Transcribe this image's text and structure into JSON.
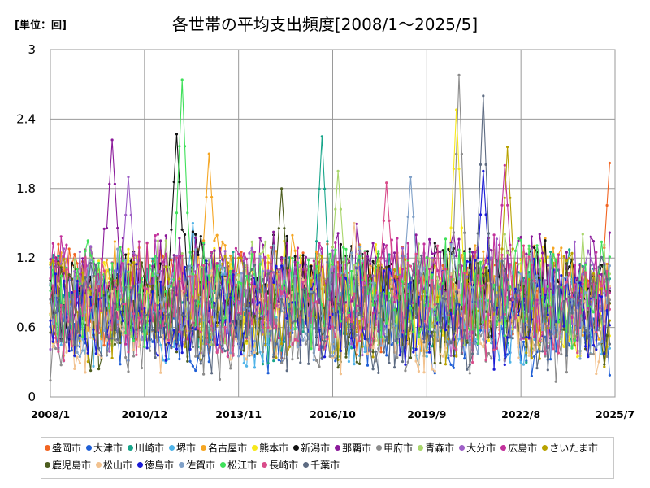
{
  "unit_label": "[単位：回]",
  "chart_data": {
    "type": "line",
    "title": "各世帯の平均支出頻度[2008/1～2025/5]",
    "xlabel": "",
    "ylabel": "",
    "ylim": [
      0,
      3
    ],
    "y_ticks": [
      "0",
      "0.6",
      "1.2",
      "1.8",
      "2.4",
      "3"
    ],
    "x_ticks": [
      "2008/1",
      "2010/12",
      "2013/11",
      "2016/10",
      "2019/9",
      "2022/8",
      "2025/7"
    ],
    "x_start": "2008-01",
    "x_end": "2025-07",
    "grid": true,
    "legend_position": "bottom",
    "series": [
      {
        "name": "盛岡市",
        "color": "#f26522",
        "base": 0.85,
        "amp": 0.45,
        "peak": 2.02,
        "peak_month": "2025-05"
      },
      {
        "name": "大津市",
        "color": "#1f5fd6",
        "base": 0.6,
        "amp": 0.35,
        "peak": 1.0,
        "peak_month": "2009-06"
      },
      {
        "name": "川崎市",
        "color": "#17a58a",
        "base": 0.8,
        "amp": 0.45,
        "peak": 2.25,
        "peak_month": "2016-06"
      },
      {
        "name": "堺市",
        "color": "#4fb3e8",
        "base": 0.7,
        "amp": 0.4,
        "peak": 1.5,
        "peak_month": "2012-06"
      },
      {
        "name": "名古屋市",
        "color": "#f5a623",
        "base": 0.9,
        "amp": 0.45,
        "peak": 2.1,
        "peak_month": "2012-12"
      },
      {
        "name": "熊本市",
        "color": "#f7e81b",
        "base": 0.85,
        "amp": 0.45,
        "peak": 2.48,
        "peak_month": "2020-08"
      },
      {
        "name": "新潟市",
        "color": "#111111",
        "base": 0.95,
        "amp": 0.4,
        "peak": 2.27,
        "peak_month": "2011-12"
      },
      {
        "name": "那覇市",
        "color": "#8b1a9a",
        "base": 1.0,
        "amp": 0.45,
        "peak": 2.22,
        "peak_month": "2009-12"
      },
      {
        "name": "甲府市",
        "color": "#8c8c8c",
        "base": 0.6,
        "amp": 0.4,
        "peak": 2.78,
        "peak_month": "2020-09"
      },
      {
        "name": "青森市",
        "color": "#a9d66b",
        "base": 0.9,
        "amp": 0.45,
        "peak": 1.95,
        "peak_month": "2016-12"
      },
      {
        "name": "大分市",
        "color": "#9e5fc7",
        "base": 0.85,
        "amp": 0.45,
        "peak": 1.9,
        "peak_month": "2010-06"
      },
      {
        "name": "広島市",
        "color": "#c2309b",
        "base": 0.9,
        "amp": 0.45,
        "peak": 2.0,
        "peak_month": "2022-02"
      },
      {
        "name": "さいたま市",
        "color": "#b8a200",
        "base": 0.75,
        "amp": 0.45,
        "peak": 2.16,
        "peak_month": "2022-03"
      },
      {
        "name": "鹿児島市",
        "color": "#4d5d1e",
        "base": 0.7,
        "amp": 0.4,
        "peak": 1.8,
        "peak_month": "2015-03"
      },
      {
        "name": "松山市",
        "color": "#f2c28f",
        "base": 0.65,
        "amp": 0.4,
        "peak": 1.5,
        "peak_month": "2017-06"
      },
      {
        "name": "徳島市",
        "color": "#1a1ad6",
        "base": 0.75,
        "amp": 0.45,
        "peak": 1.95,
        "peak_month": "2021-06"
      },
      {
        "name": "佐賀市",
        "color": "#7fa0c8",
        "base": 0.8,
        "amp": 0.45,
        "peak": 1.9,
        "peak_month": "2019-03"
      },
      {
        "name": "松江市",
        "color": "#3fe05a",
        "base": 0.9,
        "amp": 0.45,
        "peak": 2.74,
        "peak_month": "2012-02"
      },
      {
        "name": "長崎市",
        "color": "#d94c8a",
        "base": 0.8,
        "amp": 0.45,
        "peak": 1.85,
        "peak_month": "2018-06"
      },
      {
        "name": "千葉市",
        "color": "#5d6b82",
        "base": 0.7,
        "amp": 0.45,
        "peak": 2.6,
        "peak_month": "2021-06"
      }
    ]
  }
}
